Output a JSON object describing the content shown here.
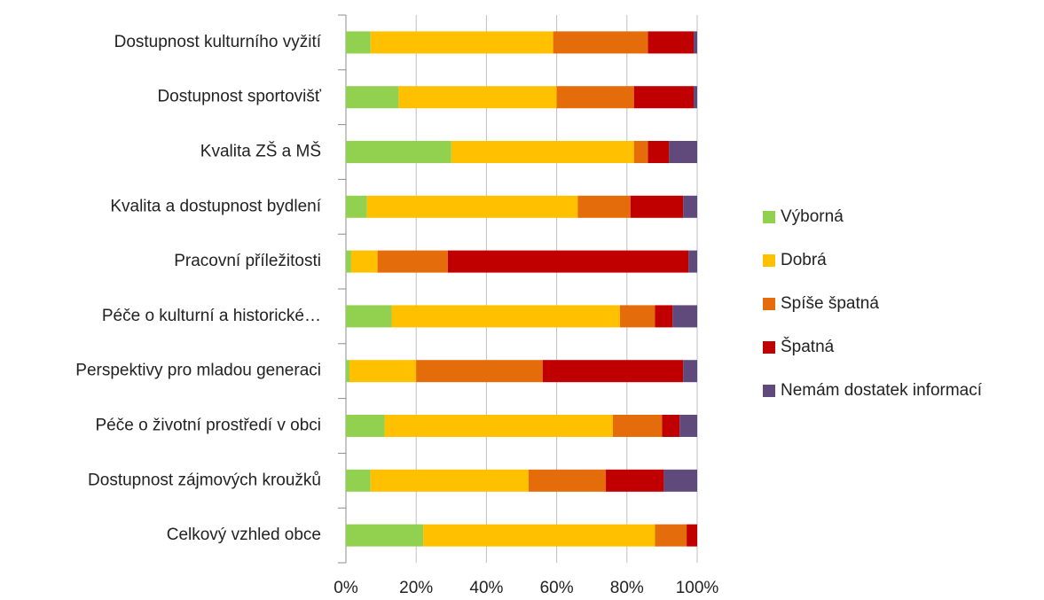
{
  "chart_data": {
    "type": "stacked_barh",
    "categories": [
      "Dostupnost kulturního vyžití",
      "Dostupnost sportovišť",
      "Kvalita ZŠ a MŠ",
      "Kvalita a dostupnost bydlení",
      "Pracovní příležitosti",
      "Péče o kulturní a historické…",
      "Perspektivy pro mladou generaci",
      "Péče o životní prostředí v obci",
      "Dostupnost zájmových kroužků",
      "Celkový vzhled obce"
    ],
    "series": [
      {
        "name": "Výborná",
        "color": "#92d050",
        "values": [
          7,
          15,
          30,
          6,
          1.5,
          13,
          1,
          11,
          7,
          22
        ]
      },
      {
        "name": "Dobrá",
        "color": "#ffc000",
        "values": [
          52,
          45,
          52,
          60,
          7.5,
          65,
          19,
          65,
          45,
          66
        ]
      },
      {
        "name": "Spíše špatná",
        "color": "#e46c0a",
        "values": [
          27,
          22,
          4,
          15,
          20,
          10,
          36,
          14,
          22,
          9
        ]
      },
      {
        "name": "Špatná",
        "color": "#c00000",
        "values": [
          13,
          17,
          6,
          15,
          68.5,
          5,
          40,
          5,
          16.5,
          3
        ]
      },
      {
        "name": "Nemám dostatek informací",
        "color": "#604a7b",
        "values": [
          1,
          1,
          8,
          4,
          2.5,
          7,
          4,
          5,
          9.5,
          0
        ]
      }
    ],
    "xlim": [
      0,
      100
    ],
    "xticks": [
      {
        "value": 0,
        "label": "0%"
      },
      {
        "value": 20,
        "label": "20%"
      },
      {
        "value": 40,
        "label": "40%"
      },
      {
        "value": 60,
        "label": "60%"
      },
      {
        "value": 80,
        "label": "80%"
      },
      {
        "value": 100,
        "label": "100%"
      }
    ],
    "grid": true,
    "legend": "right"
  }
}
